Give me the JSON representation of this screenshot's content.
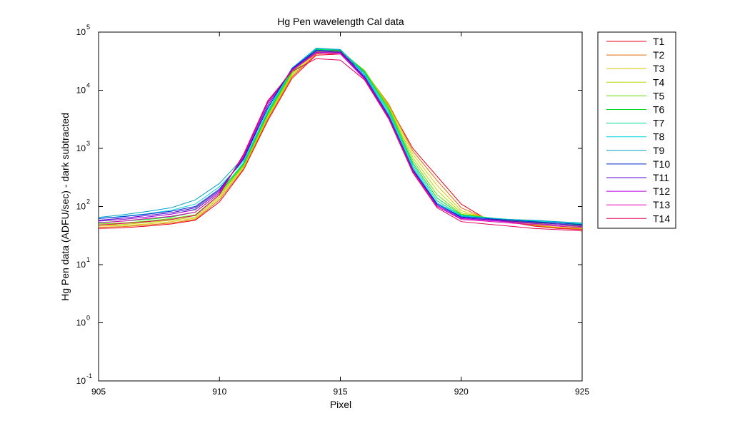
{
  "chart_data": {
    "type": "line",
    "title": "Hg Pen wavelength Cal data",
    "xlabel": "Pixel",
    "ylabel": "Hg Pen data (ADFU/sec) - dark subtracted",
    "xlim": [
      905,
      925
    ],
    "ylim": [
      0.1,
      100000
    ],
    "yscale": "log",
    "grid": false,
    "legend": "outside-right",
    "x_ticks": [
      905,
      910,
      915,
      920,
      925
    ],
    "y_ticks": [
      {
        "value": 0.1,
        "base": "10",
        "exp": "-1"
      },
      {
        "value": 1,
        "base": "10",
        "exp": "0"
      },
      {
        "value": 10,
        "base": "10",
        "exp": "1"
      },
      {
        "value": 100,
        "base": "10",
        "exp": "2"
      },
      {
        "value": 1000,
        "base": "10",
        "exp": "3"
      },
      {
        "value": 10000,
        "base": "10",
        "exp": "4"
      },
      {
        "value": 100000,
        "base": "10",
        "exp": "5"
      }
    ],
    "x": [
      905,
      906,
      907,
      908,
      909,
      910,
      911,
      912,
      913,
      914,
      915,
      916,
      917,
      918,
      919,
      920,
      921,
      922,
      923,
      924,
      925
    ],
    "series": [
      {
        "name": "T1",
        "color": "#e8001e",
        "values": [
          42,
          43,
          46,
          50,
          58,
          120,
          430,
          3000,
          16000,
          40000,
          42000,
          20000,
          5500,
          1000,
          330,
          110,
          62,
          54,
          46,
          42,
          40
        ]
      },
      {
        "name": "T2",
        "color": "#e06a00",
        "values": [
          44,
          45,
          48,
          52,
          60,
          130,
          450,
          3200,
          17000,
          42000,
          44000,
          21000,
          5800,
          900,
          280,
          95,
          63,
          55,
          47,
          43,
          41
        ]
      },
      {
        "name": "T3",
        "color": "#dcc800",
        "values": [
          46,
          47,
          50,
          55,
          63,
          140,
          480,
          3400,
          18000,
          44000,
          46000,
          21500,
          5500,
          800,
          230,
          85,
          64,
          56,
          48,
          44,
          42
        ]
      },
      {
        "name": "T4",
        "color": "#b4dc00",
        "values": [
          48,
          49,
          53,
          58,
          66,
          150,
          500,
          3600,
          19000,
          46000,
          47000,
          22000,
          5200,
          700,
          190,
          78,
          65,
          57,
          50,
          46,
          44
        ]
      },
      {
        "name": "T5",
        "color": "#66dc00",
        "values": [
          50,
          52,
          56,
          62,
          72,
          160,
          520,
          3800,
          20000,
          48000,
          48000,
          21500,
          5000,
          620,
          160,
          74,
          65,
          58,
          52,
          48,
          46
        ]
      },
      {
        "name": "T6",
        "color": "#00dc28",
        "values": [
          53,
          56,
          60,
          66,
          80,
          170,
          540,
          4000,
          21000,
          50000,
          49000,
          21000,
          4700,
          560,
          140,
          72,
          65,
          59,
          54,
          50,
          48
        ]
      },
      {
        "name": "T7",
        "color": "#00dc96",
        "values": [
          57,
          60,
          66,
          74,
          90,
          180,
          560,
          4200,
          22000,
          51000,
          50000,
          20000,
          4400,
          520,
          125,
          70,
          64,
          60,
          56,
          52,
          50
        ]
      },
      {
        "name": "T8",
        "color": "#00d2dc",
        "values": [
          62,
          68,
          75,
          86,
          110,
          220,
          600,
          4400,
          23000,
          52000,
          50000,
          19000,
          4100,
          480,
          115,
          70,
          64,
          60,
          57,
          54,
          51
        ]
      },
      {
        "name": "T9",
        "color": "#00a0c8",
        "values": [
          65,
          72,
          82,
          95,
          130,
          250,
          700,
          4800,
          24000,
          53000,
          50000,
          18000,
          3800,
          450,
          110,
          68,
          63,
          60,
          58,
          55,
          52
        ]
      },
      {
        "name": "T10",
        "color": "#0028d2",
        "values": [
          62,
          67,
          74,
          83,
          100,
          200,
          650,
          5000,
          23500,
          49000,
          47000,
          17000,
          3600,
          430,
          110,
          66,
          62,
          58,
          55,
          52,
          49
        ]
      },
      {
        "name": "T11",
        "color": "#5a00d2",
        "values": [
          58,
          63,
          70,
          78,
          95,
          190,
          680,
          5500,
          23000,
          47000,
          45000,
          16500,
          3500,
          420,
          105,
          64,
          60,
          56,
          53,
          50,
          47
        ]
      },
      {
        "name": "T12",
        "color": "#b400dc",
        "values": [
          56,
          60,
          66,
          74,
          88,
          180,
          720,
          6000,
          22500,
          45000,
          44000,
          16000,
          3400,
          410,
          100,
          62,
          58,
          54,
          51,
          48,
          45
        ]
      },
      {
        "name": "T13",
        "color": "#e600b4",
        "values": [
          52,
          56,
          62,
          68,
          80,
          170,
          760,
          6300,
          22000,
          43000,
          42000,
          15500,
          3300,
          400,
          100,
          60,
          56,
          52,
          49,
          46,
          43
        ]
      },
      {
        "name": "T14",
        "color": "#e0005a",
        "values": [
          48,
          51,
          55,
          60,
          70,
          160,
          800,
          6600,
          21000,
          35000,
          33000,
          15000,
          3200,
          380,
          95,
          55,
          50,
          46,
          42,
          40,
          38
        ]
      }
    ]
  }
}
